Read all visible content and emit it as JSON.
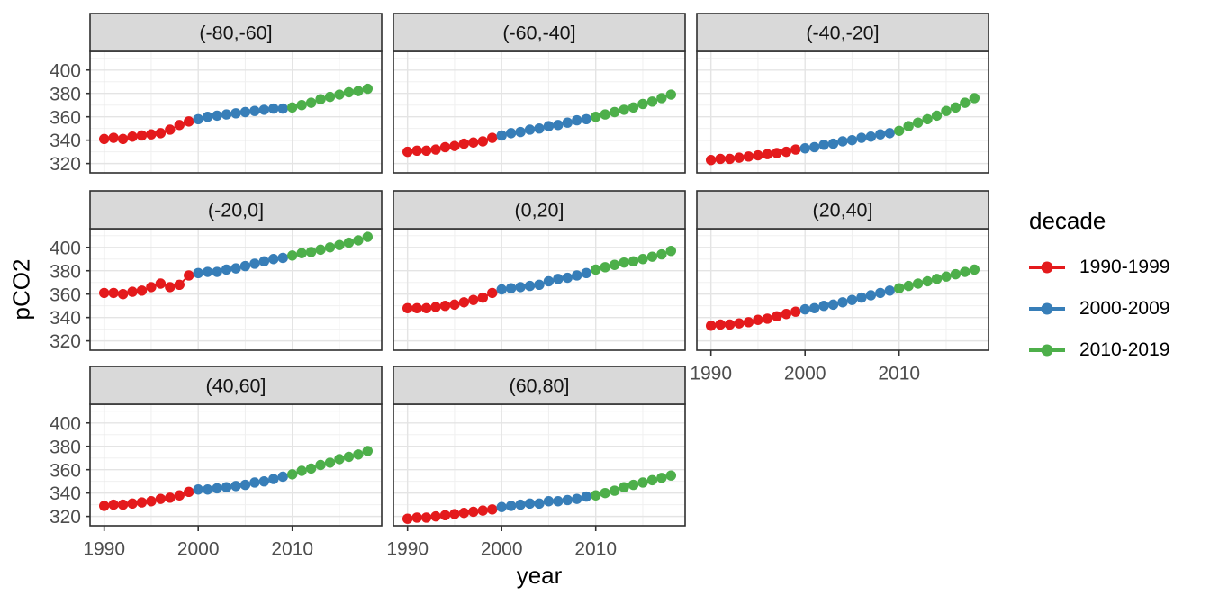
{
  "figure": {
    "y_axis_title": "pCO2",
    "x_axis_title": "year",
    "legend": {
      "title": "decade",
      "entries": [
        {
          "label": "1990-1999",
          "color": "#E41A1C"
        },
        {
          "label": "2000-2009",
          "color": "#377EB8"
        },
        {
          "label": "2010-2019",
          "color": "#4DAF4A"
        }
      ]
    }
  },
  "chart_data": {
    "type": "scatter",
    "title": "",
    "xlabel": "year",
    "ylabel": "pCO2",
    "facet_variable": "latitude band",
    "facet_columns": 3,
    "x_ticks": [
      1990,
      2000,
      2010
    ],
    "y_ticks": [
      320,
      340,
      360,
      380,
      400
    ],
    "x_minor_ticks": [
      1995,
      2005,
      2015
    ],
    "y_minor_ticks": [
      330,
      350,
      370,
      390,
      410
    ],
    "xlim": [
      1988.5,
      2019.5
    ],
    "ylim": [
      312,
      416
    ],
    "grid": true,
    "legend_position": "right",
    "legend_title": "decade",
    "series_colors": {
      "1990-1999": "#E41A1C",
      "2000-2009": "#377EB8",
      "2010-2019": "#4DAF4A"
    },
    "decade_breaks": [
      2000,
      2010
    ],
    "x": [
      1990,
      1991,
      1992,
      1993,
      1994,
      1995,
      1996,
      1997,
      1998,
      1999,
      2000,
      2001,
      2002,
      2003,
      2004,
      2005,
      2006,
      2007,
      2008,
      2009,
      2010,
      2011,
      2012,
      2013,
      2014,
      2015,
      2016,
      2017,
      2018
    ],
    "facets": [
      {
        "label": "(-80,-60]",
        "values": [
          341,
          342,
          341,
          343,
          344,
          345,
          346,
          349,
          353,
          356,
          358,
          360,
          361,
          362,
          363,
          364,
          365,
          366,
          367,
          367,
          368,
          370,
          372,
          375,
          377,
          379,
          381,
          382,
          384
        ]
      },
      {
        "label": "(-60,-40]",
        "values": [
          330,
          331,
          331,
          332,
          334,
          335,
          337,
          338,
          339,
          342,
          344,
          346,
          347,
          349,
          350,
          352,
          353,
          355,
          357,
          358,
          360,
          362,
          364,
          366,
          368,
          371,
          373,
          376,
          379
        ]
      },
      {
        "label": "(-40,-20]",
        "values": [
          323,
          324,
          324,
          325,
          326,
          327,
          328,
          329,
          330,
          332,
          333,
          334,
          336,
          337,
          339,
          340,
          342,
          343,
          345,
          346,
          348,
          352,
          355,
          358,
          361,
          365,
          368,
          372,
          376
        ]
      },
      {
        "label": "(-20,0]",
        "values": [
          361,
          361,
          360,
          362,
          363,
          366,
          369,
          366,
          368,
          376,
          378,
          379,
          379,
          381,
          382,
          384,
          386,
          388,
          390,
          391,
          393,
          395,
          396,
          398,
          400,
          402,
          404,
          406,
          409
        ]
      },
      {
        "label": "(0,20]",
        "values": [
          348,
          348,
          348,
          349,
          350,
          351,
          353,
          355,
          357,
          361,
          364,
          365,
          366,
          367,
          368,
          371,
          373,
          374,
          376,
          378,
          381,
          383,
          385,
          387,
          388,
          390,
          392,
          394,
          397
        ]
      },
      {
        "label": "(20,40]",
        "values": [
          333,
          334,
          334,
          335,
          336,
          338,
          339,
          341,
          343,
          345,
          347,
          348,
          350,
          351,
          353,
          355,
          357,
          359,
          361,
          363,
          365,
          367,
          369,
          371,
          373,
          375,
          377,
          379,
          381
        ]
      },
      {
        "label": "(40,60]",
        "values": [
          329,
          330,
          330,
          331,
          332,
          333,
          335,
          336,
          338,
          341,
          343,
          343,
          344,
          345,
          346,
          347,
          349,
          350,
          352,
          354,
          356,
          359,
          361,
          364,
          366,
          369,
          371,
          373,
          376
        ]
      },
      {
        "label": "(60,80]",
        "values": [
          318,
          319,
          319,
          320,
          321,
          322,
          323,
          324,
          325,
          326,
          328,
          329,
          330,
          331,
          331,
          333,
          333,
          334,
          335,
          337,
          338,
          340,
          342,
          345,
          347,
          349,
          351,
          353,
          355
        ]
      }
    ],
    "style": {
      "strip_fill": "#D9D9D9",
      "panel_border": "#2F2F2F",
      "grid_major": "#E4E4E4",
      "grid_minor": "#F0F0F0",
      "tick_label_color": "#4D4D4D",
      "strip_text_color": "#141414"
    }
  }
}
